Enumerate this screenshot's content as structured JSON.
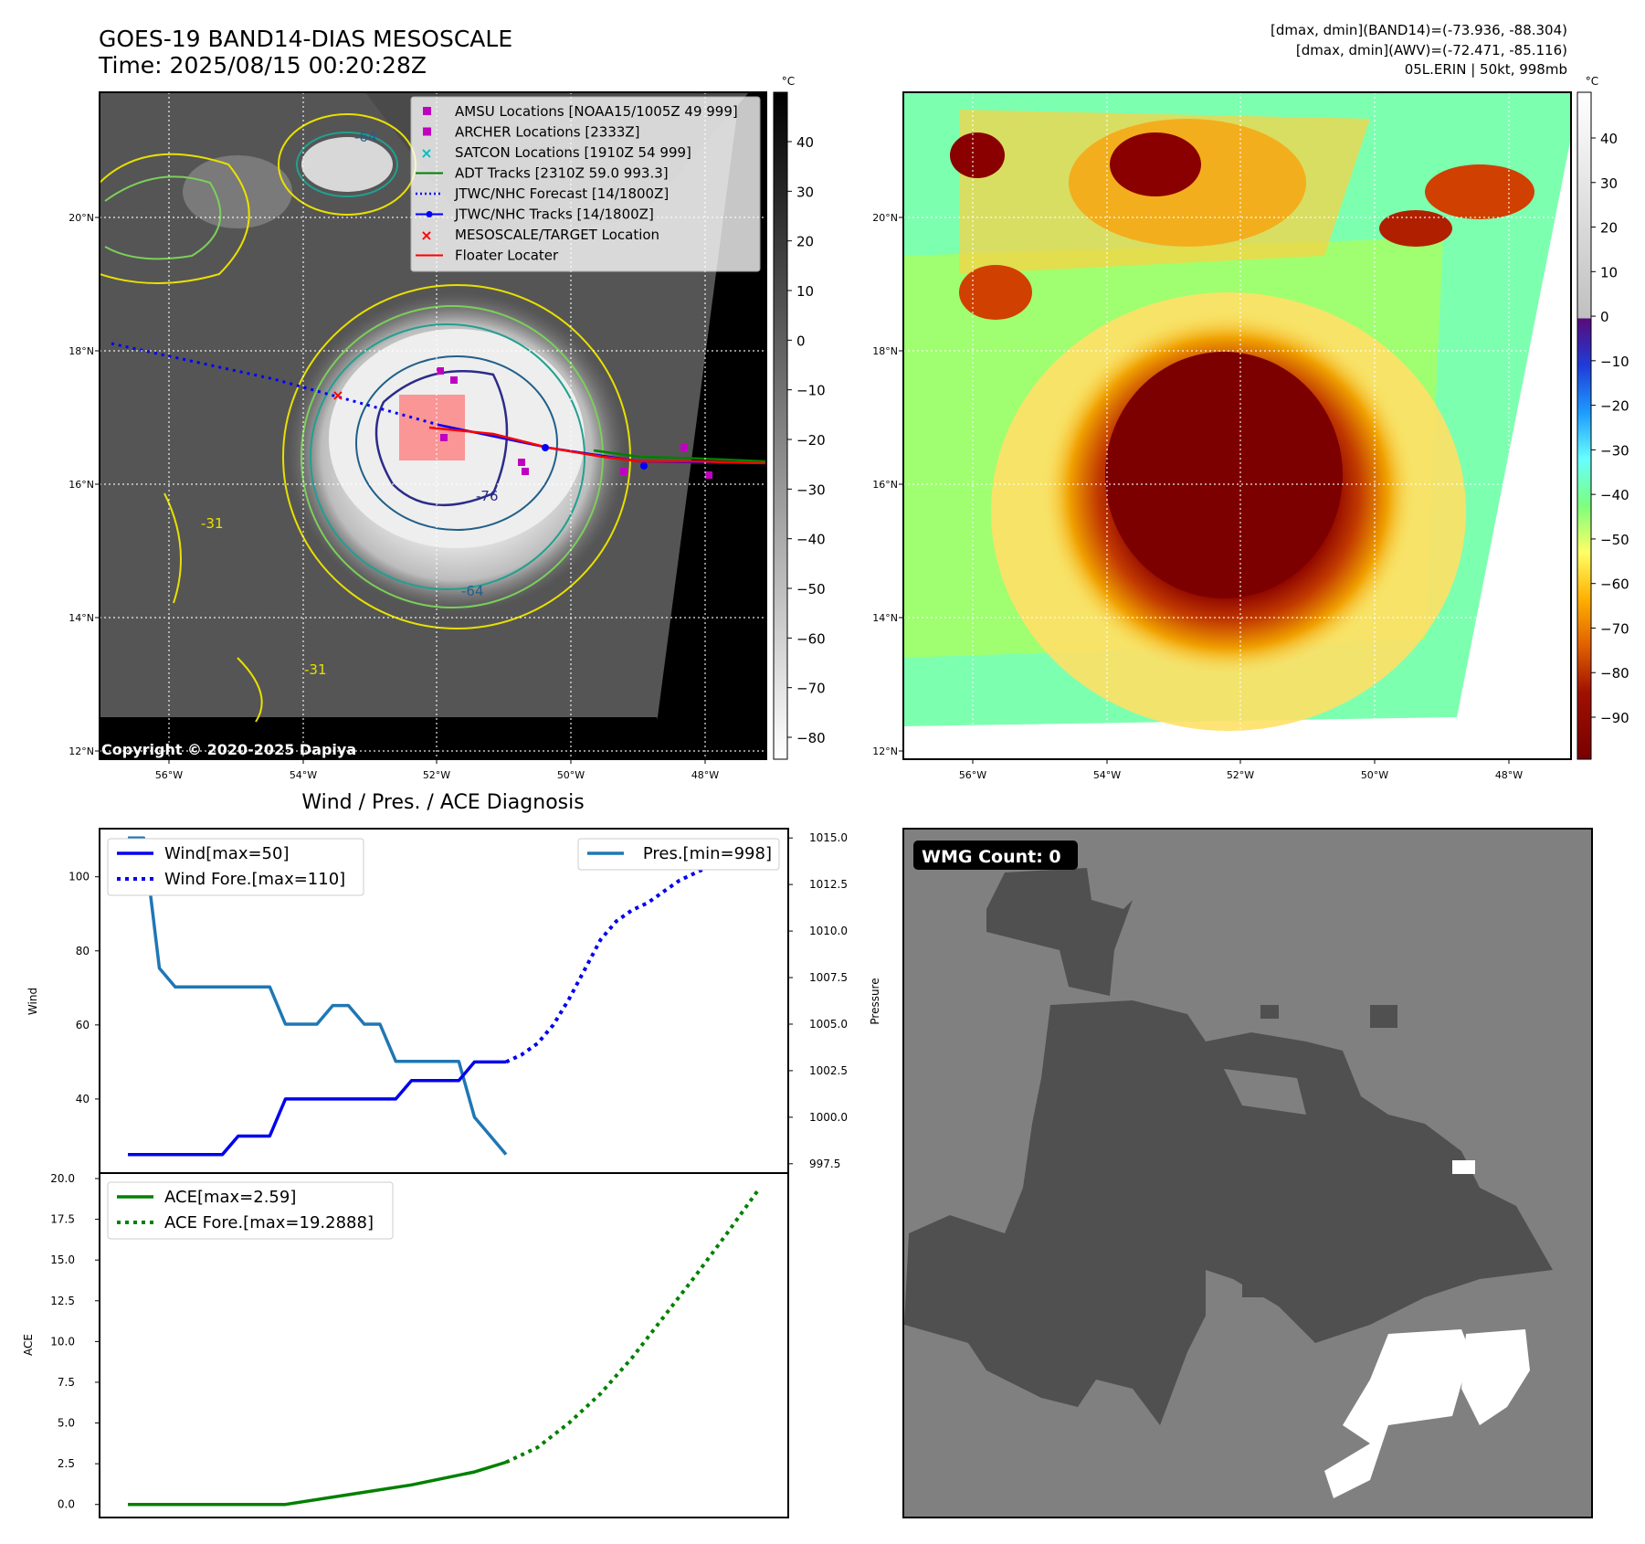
{
  "header": {
    "title_line1": "GOES-19 BAND14-DIAS MESOSCALE",
    "title_line2": "Time: 2025/08/15 00:20:28Z",
    "info_line1": "[dmax, dmin](BAND14)=(-73.936, -88.304)",
    "info_line2": "[dmax, dmin](AWV)=(-72.471, -85.116)",
    "info_line3": "05L.ERIN | 50kt, 998mb"
  },
  "map": {
    "lon_ticks": [
      "56°W",
      "54°W",
      "52°W",
      "50°W",
      "48°W"
    ],
    "lat_ticks": [
      "20°N",
      "18°N",
      "16°N",
      "14°N",
      "12°N"
    ],
    "copyright": "Copyright © 2020-2025 Dapiya",
    "contour_labels": [
      "-64",
      "-76",
      "-64",
      "-31",
      "-31"
    ]
  },
  "legend": {
    "items": [
      {
        "label": "AMSU Locations [NOAA15/1005Z 49 999]",
        "marker": "square",
        "color": "#c000c0"
      },
      {
        "label": "ARCHER Locations [2333Z]",
        "marker": "square",
        "color": "#c000c0"
      },
      {
        "label": "SATCON Locations [1910Z 54 999]",
        "marker": "x",
        "color": "#00bfbf"
      },
      {
        "label": "ADT Tracks [2310Z 59.0 993.3]",
        "marker": "line",
        "color": "#008000"
      },
      {
        "label": "JTWC/NHC Forecast [14/1800Z]",
        "marker": "dotted",
        "color": "#0000ff"
      },
      {
        "label": "JTWC/NHC Tracks [14/1800Z]",
        "marker": "line-dot",
        "color": "#0000ff"
      },
      {
        "label": "MESOSCALE/TARGET Location",
        "marker": "x",
        "color": "#ff0000"
      },
      {
        "label": "Floater Locater",
        "marker": "line",
        "color": "#ff0000"
      }
    ]
  },
  "colorbar_left": {
    "unit": "°C",
    "ticks": [
      "40",
      "30",
      "20",
      "10",
      "0",
      "−10",
      "−20",
      "−30",
      "−40",
      "−50",
      "−60",
      "−70",
      "−80"
    ]
  },
  "colorbar_right": {
    "unit": "°C",
    "ticks": [
      "40",
      "30",
      "20",
      "10",
      "0",
      "−10",
      "−20",
      "−30",
      "−40",
      "−50",
      "−60",
      "−70",
      "−80",
      "−90"
    ]
  },
  "wind_panel": {
    "title": "Wind / Pres. / ACE Diagnosis",
    "ylabel_left": "Wind",
    "ylabel_right": "Pressure",
    "wind_ticks": [
      "100",
      "80",
      "60",
      "40"
    ],
    "pres_ticks": [
      "1015.0",
      "1012.5",
      "1010.0",
      "1007.5",
      "1005.0",
      "1002.5",
      "1000.0",
      "997.5"
    ],
    "legend_wind": "Wind[max=50]",
    "legend_wind_fore": "Wind Fore.[max=110]",
    "legend_pres": "Pres.[min=998]"
  },
  "ace_panel": {
    "ylabel": "ACE",
    "ticks": [
      "20.0",
      "17.5",
      "15.0",
      "12.5",
      "10.0",
      "7.5",
      "5.0",
      "2.5",
      "0.0"
    ],
    "legend_ace": "ACE[max=2.59]",
    "legend_ace_fore": "ACE Fore.[max=19.2888]"
  },
  "wmg_panel": {
    "badge": "WMG Count: 0"
  },
  "chart_data": [
    {
      "type": "line",
      "name": "wind",
      "series": [
        {
          "name": "Wind[max=50]",
          "style": "solid",
          "color": "#0000ee",
          "x": [
            0,
            1,
            2,
            3,
            4,
            5,
            6,
            7,
            8,
            9,
            10,
            11,
            12,
            13,
            14,
            15,
            16,
            17,
            18,
            19,
            20,
            21,
            22,
            23,
            24
          ],
          "values": [
            25,
            25,
            25,
            25,
            25,
            25,
            25,
            30,
            30,
            30,
            40,
            40,
            40,
            40,
            40,
            40,
            40,
            40,
            45,
            45,
            45,
            45,
            50,
            50,
            50
          ]
        },
        {
          "name": "Wind Fore.[max=110]",
          "style": "dotted",
          "color": "#0000ee",
          "x": [
            24,
            25,
            26,
            27,
            28,
            29,
            30,
            31,
            32,
            33,
            34,
            35,
            36,
            37,
            38,
            39,
            40
          ],
          "values": [
            50,
            52,
            55,
            60,
            67,
            75,
            83,
            88,
            91,
            93,
            96,
            99,
            101,
            103,
            104,
            106,
            110
          ]
        }
      ],
      "ylim": [
        20,
        113
      ]
    },
    {
      "type": "line",
      "name": "pressure",
      "series": [
        {
          "name": "Pres.[min=998]",
          "color": "#1f77b4",
          "x": [
            0,
            1,
            2,
            3,
            4,
            5,
            6,
            7,
            8,
            9,
            10,
            11,
            12,
            13,
            14,
            15,
            16,
            17,
            18,
            19,
            20,
            21,
            22,
            23,
            24
          ],
          "values": [
            1015,
            1015,
            1008,
            1007,
            1007,
            1007,
            1007,
            1007,
            1007,
            1007,
            1005,
            1005,
            1005,
            1006,
            1006,
            1005,
            1005,
            1003,
            1003,
            1003,
            1003,
            1003,
            1000,
            999,
            998
          ]
        }
      ],
      "ylim": [
        997,
        1015.5
      ]
    },
    {
      "type": "line",
      "name": "ace",
      "series": [
        {
          "name": "ACE[max=2.59]",
          "style": "solid",
          "color": "#008000",
          "x": [
            0,
            4,
            10,
            14,
            18,
            22,
            24
          ],
          "values": [
            0,
            0,
            0,
            0.6,
            1.2,
            2.0,
            2.59
          ]
        },
        {
          "name": "ACE Fore.[max=19.2888]",
          "style": "dotted",
          "color": "#008000",
          "x": [
            24,
            26,
            28,
            30,
            32,
            34,
            36,
            38,
            40
          ],
          "values": [
            2.59,
            3.5,
            5.0,
            6.8,
            9.0,
            11.5,
            14.0,
            16.6,
            19.29
          ]
        }
      ],
      "ylim": [
        -0.8,
        20
      ]
    }
  ]
}
